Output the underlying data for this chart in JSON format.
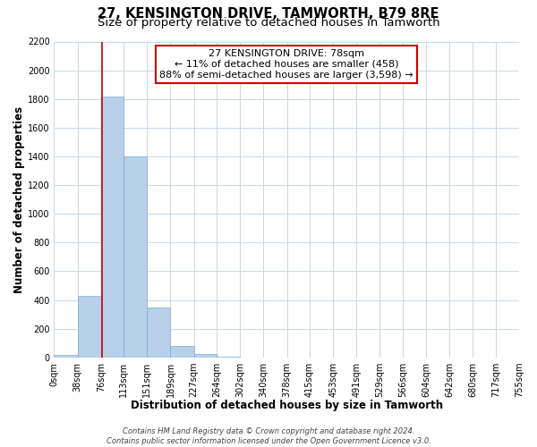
{
  "title": "27, KENSINGTON DRIVE, TAMWORTH, B79 8RE",
  "subtitle": "Size of property relative to detached houses in Tamworth",
  "xlabel": "Distribution of detached houses by size in Tamworth",
  "ylabel": "Number of detached properties",
  "bar_edges": [
    0,
    38,
    76,
    113,
    151,
    189,
    227,
    264,
    302,
    340,
    378,
    415,
    453,
    491,
    529,
    566,
    604,
    642,
    680,
    717,
    755
  ],
  "bar_heights": [
    20,
    430,
    1820,
    1400,
    350,
    80,
    25,
    5,
    0,
    0,
    0,
    0,
    0,
    0,
    0,
    0,
    0,
    0,
    0,
    0
  ],
  "bar_color": "#b8d0ea",
  "bar_edgecolor": "#7aaed0",
  "vline_x": 78,
  "vline_color": "#cc0000",
  "annotation_text": "  27 KENSINGTON DRIVE: 78sqm  \n← 11% of detached houses are smaller (458)\n88% of semi-detached houses are larger (3,598) →",
  "ylim": [
    0,
    2200
  ],
  "yticks": [
    0,
    200,
    400,
    600,
    800,
    1000,
    1200,
    1400,
    1600,
    1800,
    2000,
    2200
  ],
  "xtick_labels": [
    "0sqm",
    "38sqm",
    "76sqm",
    "113sqm",
    "151sqm",
    "189sqm",
    "227sqm",
    "264sqm",
    "302sqm",
    "340sqm",
    "378sqm",
    "415sqm",
    "453sqm",
    "491sqm",
    "529sqm",
    "566sqm",
    "604sqm",
    "642sqm",
    "680sqm",
    "717sqm",
    "755sqm"
  ],
  "footer_line1": "Contains HM Land Registry data © Crown copyright and database right 2024.",
  "footer_line2": "Contains public sector information licensed under the Open Government Licence v3.0.",
  "grid_color": "#c8d8e8",
  "background_color": "#ffffff",
  "title_fontsize": 10.5,
  "subtitle_fontsize": 9.5,
  "axis_label_fontsize": 8.5,
  "tick_fontsize": 7,
  "footer_fontsize": 6,
  "annot_fontsize": 8
}
